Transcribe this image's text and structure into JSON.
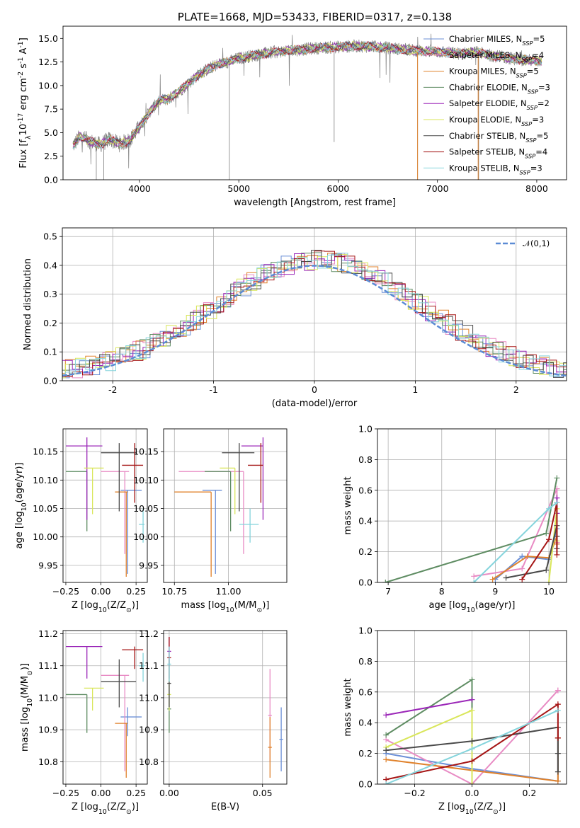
{
  "colors": {
    "Chabrier MILES": "#6b8fd6",
    "Salpeter MILES": "#e88bc4",
    "Kroupa MILES": "#e0822c",
    "Chabrier ELODIE": "#5e8c62",
    "Salpeter ELODIE": "#9b27b8",
    "Kroupa ELODIE": "#d9e65a",
    "Chabrier STELIB": "#4a4a4a",
    "Salpeter STELIB": "#a51515",
    "Kroupa STELIB": "#84d4dc",
    "data": "#808080",
    "gauss": "#5b8bd4",
    "grid": "#b0b0b0"
  },
  "chart_data": [
    {
      "id": "spectrum",
      "type": "line",
      "title": "PLATE=1668, MJD=53433, FIBERID=0317, z=0.138",
      "xlabel": "wavelength [Angstrom, rest frame]",
      "ylabel": "Flux [f$_\\lambda$10$^{-17}$ erg cm$^{-2}$ s$^{-1}$ A$^{-1}$]",
      "xlim": [
        3230,
        8300
      ],
      "ylim": [
        0,
        16.3
      ],
      "xticks": [
        4000,
        5000,
        6000,
        7000,
        8000
      ],
      "yticks": [
        "0.0",
        "2.5",
        "5.0",
        "7.5",
        "10.0",
        "12.5",
        "15.0"
      ],
      "grid": false,
      "legend_position": "top-right",
      "continuum": {
        "x": [
          3330,
          3400,
          3500,
          3600,
          3700,
          3800,
          3900,
          4000,
          4100,
          4200,
          4300,
          4400,
          4500,
          4600,
          4700,
          4800,
          4900,
          5000,
          5200,
          5400,
          5600,
          5800,
          6000,
          6200,
          6400,
          6600,
          6800,
          7000,
          7200,
          7400,
          7600,
          7800,
          8050
        ],
        "y": [
          3.6,
          4.6,
          4.1,
          3.7,
          4.3,
          3.8,
          4.2,
          5.6,
          7.2,
          8.4,
          8.6,
          9.4,
          10.3,
          11.2,
          11.8,
          12.3,
          12.5,
          12.9,
          13.3,
          13.6,
          13.8,
          14.0,
          14.1,
          14.2,
          14.1,
          13.9,
          13.7,
          13.6,
          13.4,
          13.5,
          13.1,
          12.8,
          12.6
        ]
      },
      "series": [
        {
          "name": "Chabrier MILES, N$_{SSP}$=5"
        },
        {
          "name": "Salpeter MILES, N$_{SSP}$=4"
        },
        {
          "name": "Kroupa MILES, N$_{SSP}$=5"
        },
        {
          "name": "Chabrier ELODIE, N$_{SSP}$=3"
        },
        {
          "name": "Salpeter ELODIE, N$_{SSP}$=2"
        },
        {
          "name": "Kroupa ELODIE, N$_{SSP}$=3"
        },
        {
          "name": "Chabrier STELIB, N$_{SSP}$=5"
        },
        {
          "name": "Salpeter STELIB, N$_{SSP}$=4"
        },
        {
          "name": "Kroupa STELIB, N$_{SSP}$=3"
        }
      ]
    },
    {
      "id": "residuals",
      "type": "histogram",
      "xlabel": "(data-model)/error",
      "ylabel": "Normed distribution",
      "xlim": [
        -2.5,
        2.5
      ],
      "ylim": [
        0,
        0.53
      ],
      "xticks": [
        -2,
        -1,
        0,
        1,
        2
      ],
      "yticks": [
        "0.0",
        "0.1",
        "0.2",
        "0.3",
        "0.4",
        "0.5"
      ],
      "grid": true,
      "legend_position": "top-right",
      "gauss_label": "$\\mathcal{N}(0,1)$",
      "bin_width": 0.1
    },
    {
      "id": "age-vs-Z",
      "type": "scatter",
      "xlabel": "Z [log$_{10}$(Z/Z$_\\odot$)]",
      "ylabel": "age  [log$_{10}$(age/yr)]",
      "xlim": [
        -0.27,
        0.33
      ],
      "ylim": [
        9.92,
        10.19
      ],
      "xticks": [
        "−0.25",
        "0.00",
        "0.25"
      ],
      "yticks": [
        "9.95",
        "10.00",
        "10.05",
        "10.10",
        "10.15"
      ]
    },
    {
      "id": "age-vs-mass",
      "type": "scatter",
      "xlabel": "mass [log$_{10}$(M/M$_\\odot$)]",
      "ylabel": "",
      "xlim": [
        10.7,
        11.27
      ],
      "ylim": [
        9.92,
        10.19
      ],
      "xticks": [
        "10.75",
        "11.00"
      ],
      "yticks": [
        "9.95",
        "10.00",
        "10.05",
        "10.10",
        "10.15"
      ]
    },
    {
      "id": "weight-vs-age",
      "type": "line",
      "xlabel": "age  [log$_{10}$(age/yr)]",
      "ylabel": "mass weight",
      "xlim": [
        6.8,
        10.33
      ],
      "ylim": [
        0,
        1
      ],
      "xticks": [
        "7",
        "8",
        "9",
        "10"
      ],
      "yticks": [
        "0.0",
        "0.2",
        "0.4",
        "0.6",
        "0.8",
        "1.0"
      ]
    },
    {
      "id": "mass-vs-Z",
      "type": "scatter",
      "xlabel": "Z [log$_{10}$(Z/Z$_\\odot$)]",
      "ylabel": "mass [log$_{10}$(M/M$_\\odot$)]",
      "xlim": [
        -0.27,
        0.33
      ],
      "ylim": [
        10.73,
        11.21
      ],
      "xticks": [
        "−0.25",
        "0.00",
        "0.25"
      ],
      "yticks": [
        "10.8",
        "10.9",
        "11.0",
        "11.1",
        "11.2"
      ]
    },
    {
      "id": "mass-vs-ebv",
      "type": "scatter",
      "xlabel": "E(B-V)",
      "ylabel": "",
      "xlim": [
        -0.003,
        0.063
      ],
      "ylim": [
        10.73,
        11.21
      ],
      "xticks": [
        "0.00",
        "0.05"
      ],
      "yticks": [
        "10.8",
        "10.9",
        "11.0",
        "11.1",
        "11.2"
      ]
    },
    {
      "id": "weight-vs-Z",
      "type": "line",
      "xlabel": "Z [log$_{10}$(Z/Z$_\\odot$)]",
      "ylabel": "mass weight",
      "xlim": [
        -0.33,
        0.33
      ],
      "ylim": [
        0,
        1
      ],
      "xticks": [
        "−0.2",
        "0.0",
        "0.2"
      ],
      "yticks": [
        "0.0",
        "0.2",
        "0.4",
        "0.6",
        "0.8",
        "1.0"
      ]
    }
  ],
  "models": [
    {
      "key": "Chabrier MILES",
      "Z": 0.19,
      "Zlo": 0.14,
      "Zhi": 0.29,
      "age": 10.082,
      "ageLo": 9.935,
      "ageHi": 10.082,
      "mass": 10.94,
      "massLo": 10.88,
      "massHi": 10.97,
      "ebv": 0.06,
      "ebvLo": 10.77,
      "ebvHi": 10.97,
      "ssp_age": [
        9.0,
        9.5,
        10.0,
        10.15,
        10.15
      ],
      "ssp_w": [
        0.02,
        0.17,
        0.15,
        0.35,
        0.25
      ],
      "ssp_Z": [
        -0.3,
        0.0,
        0.3,
        0.3,
        0.3
      ],
      "ssp_Zw": [
        0.2,
        0.1,
        0.02,
        0.3,
        0.3
      ]
    },
    {
      "key": "Salpeter MILES",
      "Z": 0.17,
      "Zlo": 0.0,
      "Zhi": 0.2,
      "age": 10.115,
      "ageLo": 9.97,
      "ageHi": 10.115,
      "mass": 11.07,
      "massLo": 10.77,
      "massHi": 11.07,
      "ebv": 0.054,
      "ebvLo": 10.8,
      "ebvHi": 11.09,
      "ssp_age": [
        8.6,
        9.5,
        10.15,
        10.15
      ],
      "ssp_w": [
        0.04,
        0.09,
        0.61,
        0.26
      ],
      "ssp_Z": [
        -0.3,
        0.0,
        0.3,
        0.3
      ],
      "ssp_Zw": [
        0.29,
        0.0,
        0.61,
        0.61
      ]
    },
    {
      "key": "Kroupa MILES",
      "Z": 0.18,
      "Zlo": 0.1,
      "Zhi": 0.19,
      "age": 10.079,
      "ageLo": 9.93,
      "ageHi": 10.079,
      "mass": 10.92,
      "massLo": 10.75,
      "massHi": 10.92,
      "ebv": 0.054,
      "ebvLo": 10.75,
      "ebvHi": 10.94,
      "ssp_age": [
        8.95,
        9.6,
        10.0,
        10.15,
        10.15
      ],
      "ssp_w": [
        0.02,
        0.17,
        0.16,
        0.3,
        0.25
      ],
      "ssp_Z": [
        -0.3,
        0.0,
        0.3,
        0.3,
        0.3
      ],
      "ssp_Zw": [
        0.16,
        0.09,
        0.02,
        0.3,
        0.3
      ]
    },
    {
      "key": "Chabrier ELODIE",
      "Z": -0.1,
      "Zlo": -0.25,
      "Zhi": -0.1,
      "age": 10.115,
      "ageLo": 10.01,
      "ageHi": 10.115,
      "mass": 11.01,
      "massLo": 10.89,
      "massHi": 11.01,
      "ebv": 0.0,
      "ebvLo": 10.89,
      "ebvHi": 11.04,
      "ssp_age": [
        6.95,
        9.95,
        10.15
      ],
      "ssp_w": [
        0.0,
        0.32,
        0.68
      ],
      "ssp_Z": [
        -0.3,
        0.0,
        0.0
      ],
      "ssp_Zw": [
        0.32,
        0.68,
        0.0
      ]
    },
    {
      "key": "Salpeter ELODIE",
      "Z": -0.1,
      "Zlo": -0.25,
      "Zhi": 0.01,
      "age": 10.16,
      "ageLo": 10.03,
      "ageHi": 10.175,
      "mass": 11.16,
      "massLo": 11.06,
      "massHi": 11.16,
      "ebv": 0.0,
      "ebvLo": 11.1,
      "ebvHi": 11.19,
      "ssp_age": [
        10.15,
        10.15
      ],
      "ssp_w": [
        0.45,
        0.55
      ],
      "ssp_Z": [
        -0.3,
        0.0
      ],
      "ssp_Zw": [
        0.45,
        0.55
      ]
    },
    {
      "key": "Kroupa ELODIE",
      "Z": -0.06,
      "Zlo": -0.12,
      "Zhi": 0.02,
      "age": 10.121,
      "ageLo": 10.04,
      "ageHi": 10.121,
      "mass": 11.03,
      "massLo": 10.96,
      "massHi": 11.03,
      "ebv": 0.0,
      "ebvLo": 10.96,
      "ebvHi": 11.06,
      "ssp_age": [
        10.0,
        10.15,
        10.15
      ],
      "ssp_w": [
        0.0,
        0.48,
        0.27
      ],
      "ssp_Z": [
        -0.3,
        0.0,
        0.0
      ],
      "ssp_Zw": [
        0.24,
        0.48,
        0.0
      ]
    },
    {
      "key": "Chabrier STELIB",
      "Z": 0.13,
      "Zlo": 0.0,
      "Zhi": 0.25,
      "age": 10.148,
      "ageLo": 10.045,
      "ageHi": 10.165,
      "mass": 11.05,
      "massLo": 10.97,
      "massHi": 11.12,
      "ebv": 0.0,
      "ebvLo": 10.97,
      "ebvHi": 11.12,
      "ssp_age": [
        9.2,
        9.95,
        10.15,
        10.15,
        10.15
      ],
      "ssp_w": [
        0.03,
        0.08,
        0.37,
        0.22,
        0.3
      ],
      "ssp_Z": [
        -0.3,
        0.0,
        0.3,
        0.3,
        0.3
      ],
      "ssp_Zw": [
        0.22,
        0.28,
        0.37,
        0.08,
        0.2
      ]
    },
    {
      "key": "Salpeter STELIB",
      "Z": 0.24,
      "Zlo": 0.15,
      "Zhi": 0.3,
      "age": 10.126,
      "ageLo": 10.06,
      "ageHi": 10.165,
      "mass": 11.15,
      "massLo": 11.09,
      "massHi": 11.16,
      "ebv": 0.0,
      "ebvLo": 11.06,
      "ebvHi": 11.19,
      "ssp_age": [
        9.5,
        10.0,
        10.15,
        10.15
      ],
      "ssp_w": [
        0.02,
        0.28,
        0.52,
        0.18
      ],
      "ssp_Z": [
        -0.3,
        0.0,
        0.3,
        0.3
      ],
      "ssp_Zw": [
        0.03,
        0.15,
        0.52,
        0.3
      ]
    },
    {
      "key": "Kroupa STELIB",
      "Z": 0.3,
      "Zlo": 0.27,
      "Zhi": 0.31,
      "age": 10.022,
      "ageLo": 9.99,
      "ageHi": 10.05,
      "mass": 11.1,
      "massLo": 11.05,
      "massHi": 11.14,
      "ebv": 0.0,
      "ebvLo": 11.05,
      "ebvHi": 11.16,
      "ssp_age": [
        8.6,
        10.0,
        10.15
      ],
      "ssp_w": [
        0.0,
        0.48,
        0.52
      ],
      "ssp_Z": [
        -0.3,
        0.0,
        0.3
      ],
      "ssp_Zw": [
        0.0,
        0.23,
        0.48
      ]
    }
  ]
}
